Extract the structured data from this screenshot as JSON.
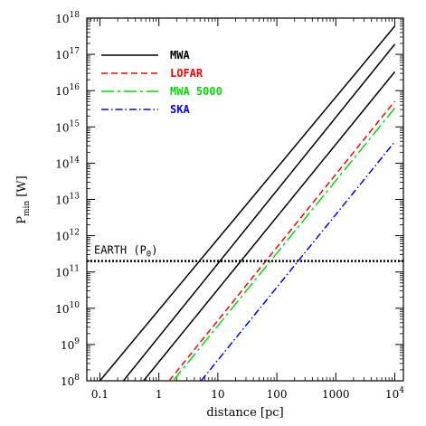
{
  "chart_data": {
    "type": "line",
    "xlabel": "distance [pc]",
    "ylabel_main": "P",
    "ylabel_sub": "min",
    "ylabel_unit": "[W]",
    "xscale": "log",
    "yscale": "log",
    "xlim": [
      0.06,
      14000
    ],
    "ylim": [
      100000000.0,
      1e+18
    ],
    "x_ticks": [
      {
        "value": 0.1,
        "label": "0.1"
      },
      {
        "value": 1,
        "label": "1"
      },
      {
        "value": 10,
        "label": "10"
      },
      {
        "value": 100,
        "label": "100"
      },
      {
        "value": 1000,
        "label": "1000"
      },
      {
        "value": 10000,
        "label": "10",
        "sup": "4"
      }
    ],
    "y_ticks": [
      {
        "value": 100000000.0,
        "base": "10",
        "sup": "8"
      },
      {
        "value": 1000000000.0,
        "base": "10",
        "sup": "9"
      },
      {
        "value": 10000000000.0,
        "base": "10",
        "sup": "10"
      },
      {
        "value": 100000000000.0,
        "base": "10",
        "sup": "11"
      },
      {
        "value": 1000000000000.0,
        "base": "10",
        "sup": "12"
      },
      {
        "value": 10000000000000.0,
        "base": "10",
        "sup": "13"
      },
      {
        "value": 100000000000000.0,
        "base": "10",
        "sup": "14"
      },
      {
        "value": 1000000000000000.0,
        "base": "10",
        "sup": "15"
      },
      {
        "value": 1e+16,
        "base": "10",
        "sup": "16"
      },
      {
        "value": 1e+17,
        "base": "10",
        "sup": "17"
      },
      {
        "value": 1e+18,
        "base": "10",
        "sup": "18"
      }
    ],
    "legend_position": "top-left",
    "legend": [
      {
        "label": "MWA",
        "color": "#000000",
        "dash": "solid"
      },
      {
        "label": "LOFAR",
        "color": "#ff0000",
        "dash": "dashed"
      },
      {
        "label": "MWA 5000",
        "color": "#00dd00",
        "dash": "long-dashed"
      },
      {
        "label": "SKA",
        "color": "#0000ff",
        "dash": "dash-dot"
      }
    ],
    "series": [
      {
        "legend_index": 0,
        "x": [
          0.1,
          10000
        ],
        "y": [
          100000000.0,
          6e+17
        ]
      },
      {
        "legend_index": 0,
        "x": [
          0.25,
          10000
        ],
        "y": [
          100000000.0,
          1.9e+17
        ]
      },
      {
        "legend_index": 0,
        "x": [
          0.55,
          10000
        ],
        "y": [
          100000000.0,
          3.3e+16
        ]
      },
      {
        "legend_index": 1,
        "x": [
          1.5,
          10000
        ],
        "y": [
          100000000.0,
          5100000000000000.0
        ]
      },
      {
        "legend_index": 2,
        "x": [
          1.75,
          10000
        ],
        "y": [
          100000000.0,
          3300000000000000.0
        ]
      },
      {
        "legend_index": 3,
        "x": [
          5.2,
          10000
        ],
        "y": [
          100000000.0,
          390000000000000.0
        ]
      }
    ],
    "annotation": {
      "text": "EARTH (P",
      "sub": "0",
      "suffix": ")",
      "y": 200000000000.0,
      "style": "dotted"
    }
  }
}
